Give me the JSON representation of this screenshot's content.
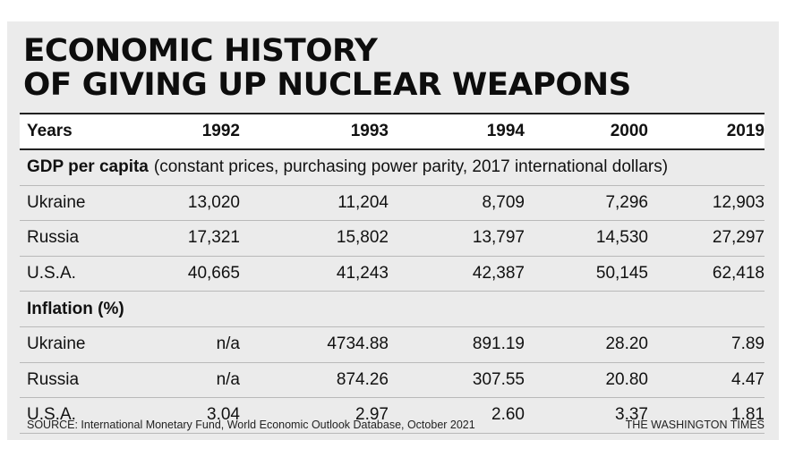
{
  "title_lines": [
    "ECONOMIC HISTORY",
    "OF GIVING UP NUCLEAR WEAPONS"
  ],
  "header": {
    "label": "Years",
    "years": [
      "1992",
      "1993",
      "1994",
      "2000",
      "2019"
    ]
  },
  "gdp": {
    "title": "GDP per capita",
    "subtitle": "(constant prices, purchasing power parity, 2017 international dollars)",
    "rows": [
      {
        "country": "Ukraine",
        "values": [
          "13,020",
          "11,204",
          "8,709",
          "7,296",
          "12,903"
        ]
      },
      {
        "country": "Russia",
        "values": [
          "17,321",
          "15,802",
          "13,797",
          "14,530",
          "27,297"
        ]
      },
      {
        "country": "U.S.A.",
        "values": [
          "40,665",
          "41,243",
          "42,387",
          "50,145",
          "62,418"
        ]
      }
    ]
  },
  "inflation": {
    "title": "Inflation (%)",
    "rows": [
      {
        "country": "Ukraine",
        "values": [
          "n/a",
          "4734.88",
          "891.19",
          "28.20",
          "7.89"
        ]
      },
      {
        "country": "Russia",
        "values": [
          "n/a",
          "874.26",
          "307.55",
          "20.80",
          "4.47"
        ]
      },
      {
        "country": "U.S.A.",
        "values": [
          "3.04",
          "2.97",
          "2.60",
          "3.37",
          "1.81"
        ]
      }
    ]
  },
  "source": "SOURCE: International Monetary Fund, World Economic Outlook Database, October 2021",
  "credit": "THE WASHINGTON TIMES",
  "chart_data": {
    "type": "table",
    "columns": [
      "1992",
      "1993",
      "1994",
      "2000",
      "2019"
    ],
    "tables": [
      {
        "name": "GDP per capita",
        "rows": [
          {
            "name": "Ukraine",
            "values": [
              13020,
              11204,
              8709,
              7296,
              12903
            ]
          },
          {
            "name": "Russia",
            "values": [
              17321,
              15802,
              13797,
              14530,
              27297
            ]
          },
          {
            "name": "U.S.A.",
            "values": [
              40665,
              41243,
              42387,
              50145,
              62418
            ]
          }
        ]
      },
      {
        "name": "Inflation (%)",
        "rows": [
          {
            "name": "Ukraine",
            "values": [
              null,
              4734.88,
              891.19,
              28.2,
              7.89
            ]
          },
          {
            "name": "Russia",
            "values": [
              null,
              874.26,
              307.55,
              20.8,
              4.47
            ]
          },
          {
            "name": "U.S.A.",
            "values": [
              3.04,
              2.97,
              2.6,
              3.37,
              1.81
            ]
          }
        ]
      }
    ]
  }
}
